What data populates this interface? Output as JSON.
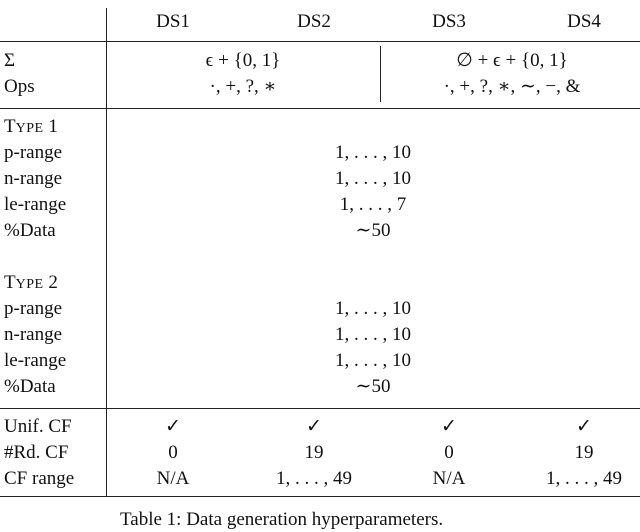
{
  "table": {
    "columns": [
      "DS1",
      "DS2",
      "DS3",
      "DS4"
    ],
    "alphabet": {
      "label": "Σ",
      "ds12": "ϵ + {0, 1}",
      "ds34": "∅ + ϵ + {0, 1}"
    },
    "ops": {
      "label": "Ops",
      "ds12": "·, +, ?, ∗",
      "ds34": "·, +, ?, ∗, ∼, −, &"
    },
    "type1": {
      "title_initial": "T",
      "title_rest": "YPE",
      "title_num": "1",
      "rows": [
        {
          "label": "p-range",
          "value": "1, . . . , 10"
        },
        {
          "label": "n-range",
          "value": "1, . . . , 10"
        },
        {
          "label": "le-range",
          "value": "1, . . . , 7"
        },
        {
          "label": "%Data",
          "value": "∼50"
        }
      ]
    },
    "type2": {
      "title_initial": "T",
      "title_rest": "YPE",
      "title_num": "2",
      "rows": [
        {
          "label": "p-range",
          "value": "1, . . . , 10"
        },
        {
          "label": "n-range",
          "value": "1, . . . , 10"
        },
        {
          "label": "le-range",
          "value": "1, . . . , 10"
        },
        {
          "label": "%Data",
          "value": "∼50"
        }
      ]
    },
    "cf": [
      {
        "label": "Unif. CF",
        "values": [
          "✓",
          "✓",
          "✓",
          "✓"
        ]
      },
      {
        "label": "#Rd. CF",
        "values": [
          "0",
          "19",
          "0",
          "19"
        ]
      },
      {
        "label": "CF range",
        "values": [
          "N/A",
          "1, . . . , 49",
          "N/A",
          "1, . . . , 49"
        ]
      }
    ]
  },
  "caption": "Table 1: Data generation hyperparameters."
}
